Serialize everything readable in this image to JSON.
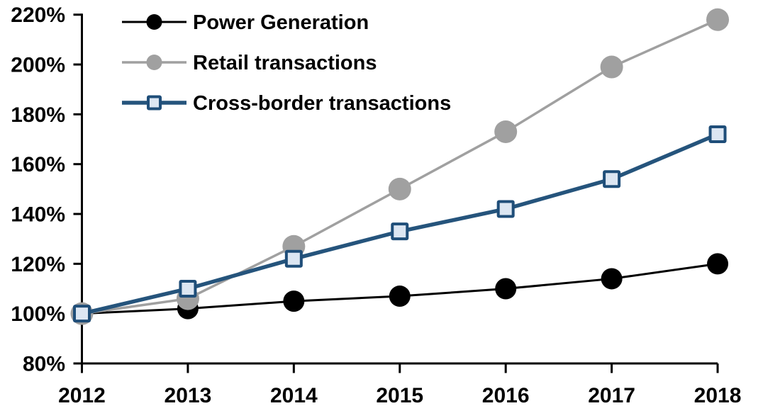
{
  "chart_data": {
    "type": "line",
    "title": "",
    "xlabel": "",
    "ylabel": "",
    "x_categories": [
      "2012",
      "2013",
      "2014",
      "2015",
      "2016",
      "2017",
      "2018"
    ],
    "y_axis": {
      "min": 80,
      "max": 220,
      "step": 20,
      "tick_values": [
        80,
        100,
        120,
        140,
        160,
        180,
        200,
        220
      ],
      "tick_labels": [
        "80%",
        "100%",
        "120%",
        "140%",
        "160%",
        "180%",
        "200%",
        "220%"
      ]
    },
    "grid": "off",
    "legend_position": "top-left",
    "axis_color": "#000000",
    "background_color": "#ffffff",
    "series": [
      {
        "name": "Power Generation",
        "values": [
          100,
          102,
          105,
          107,
          110,
          114,
          120
        ],
        "line_color": "#000000",
        "line_width": 3,
        "marker": "circle",
        "marker_fill": "#000000",
        "marker_stroke": "none",
        "marker_stroke_width": 0,
        "marker_size": 30
      },
      {
        "name": "Retail transactions",
        "values": [
          100,
          106,
          127,
          150,
          173,
          199,
          218
        ],
        "line_color": "#A0A0A0",
        "line_width": 3.5,
        "marker": "circle",
        "marker_fill": "#A0A0A0",
        "marker_stroke": "none",
        "marker_stroke_width": 0,
        "marker_size": 32
      },
      {
        "name": "Cross-border transactions",
        "values": [
          100,
          110,
          122,
          133,
          142,
          154,
          172
        ],
        "line_color": "#25547C",
        "line_width": 5.5,
        "marker": "square",
        "marker_fill": "#DCE6F2",
        "marker_stroke": "#1F4E79",
        "marker_stroke_width": 4,
        "marker_size": 21
      }
    ]
  }
}
